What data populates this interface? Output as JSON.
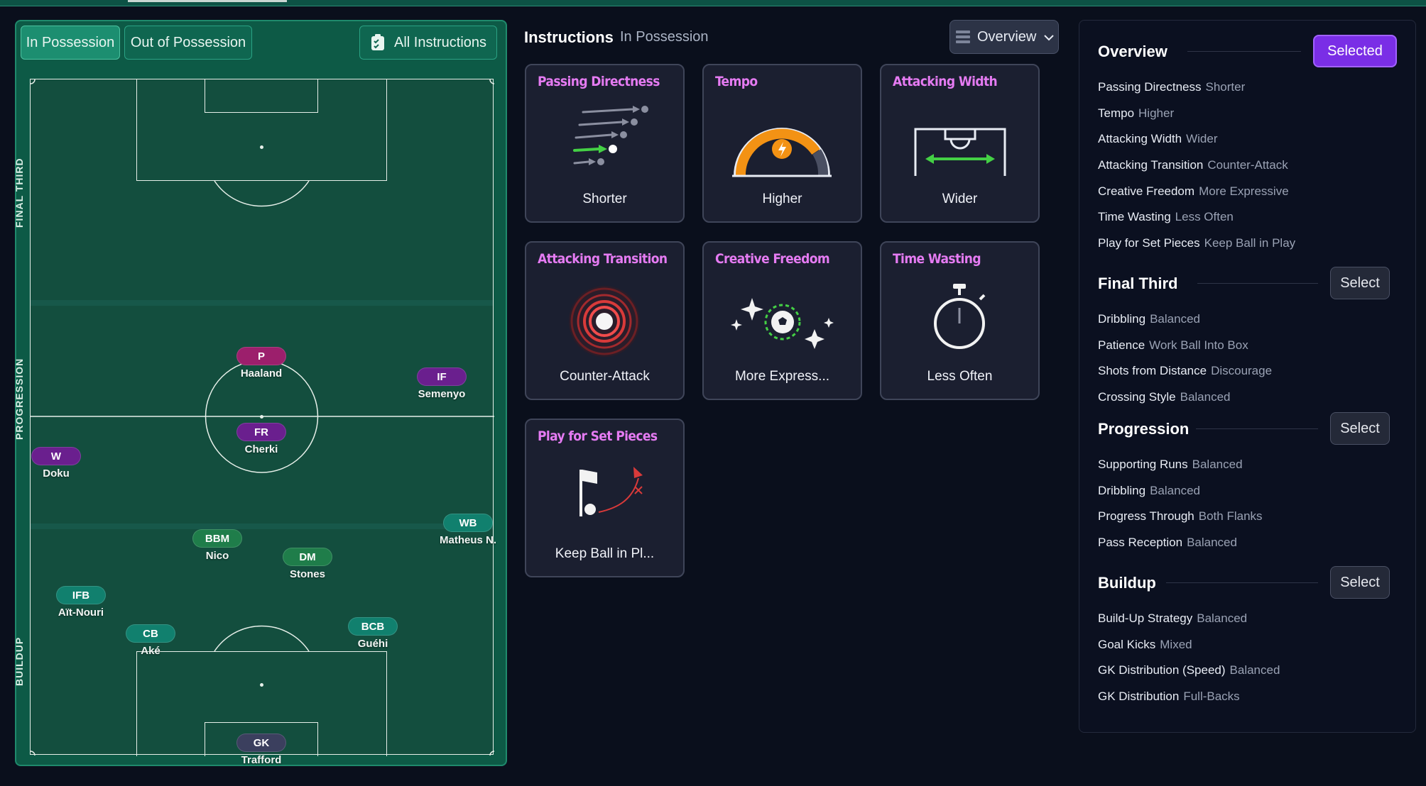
{
  "pitch": {
    "tabs": {
      "in_possession": "In Possession",
      "out_of_possession": "Out of Possession",
      "all_instructions": "All Instructions"
    },
    "zones": {
      "final_third": "FINAL THIRD",
      "progression": "PROGRESSION",
      "buildup": "BUILDUP"
    },
    "players": [
      {
        "role": "P",
        "name": "Haaland",
        "color": "#9c1f6c"
      },
      {
        "role": "IF",
        "name": "Semenyo",
        "color": "#6a1f8e"
      },
      {
        "role": "FR",
        "name": "Cherki",
        "color": "#6a1f8e"
      },
      {
        "role": "W",
        "name": "Doku",
        "color": "#6a1f8e"
      },
      {
        "role": "WB",
        "name": "Matheus N.",
        "color": "#11806e"
      },
      {
        "role": "BBM",
        "name": "Nico",
        "color": "#1f7d4a"
      },
      {
        "role": "DM",
        "name": "Stones",
        "color": "#1f7d4a"
      },
      {
        "role": "IFB",
        "name": "Aït-Nouri",
        "color": "#11806e"
      },
      {
        "role": "CB",
        "name": "Aké",
        "color": "#11806e"
      },
      {
        "role": "BCB",
        "name": "Guéhi",
        "color": "#11806e"
      },
      {
        "role": "GK",
        "name": "Trafford",
        "color": "#3b3f5e"
      }
    ]
  },
  "instructions": {
    "title": "Instructions",
    "subtitle": "In Possession",
    "view_dropdown": "Overview",
    "cards": [
      {
        "title": "Passing Directness",
        "value": "Shorter"
      },
      {
        "title": "Tempo",
        "value": "Higher"
      },
      {
        "title": "Attacking Width",
        "value": "Wider"
      },
      {
        "title": "Attacking Transition",
        "value": "Counter-Attack"
      },
      {
        "title": "Creative Freedom",
        "value": "More Express..."
      },
      {
        "title": "Time Wasting",
        "value": "Less Often"
      },
      {
        "title": "Play for Set Pieces",
        "value": "Keep Ball in Pl..."
      }
    ]
  },
  "summary": {
    "overview": {
      "title": "Overview",
      "button": "Selected",
      "rows": [
        {
          "k": "Passing Directness",
          "v": "Shorter"
        },
        {
          "k": "Tempo",
          "v": "Higher"
        },
        {
          "k": "Attacking Width",
          "v": "Wider"
        },
        {
          "k": "Attacking Transition",
          "v": "Counter-Attack"
        },
        {
          "k": "Creative Freedom",
          "v": "More Expressive"
        },
        {
          "k": "Time Wasting",
          "v": "Less Often"
        },
        {
          "k": "Play for Set Pieces",
          "v": "Keep Ball in Play"
        }
      ]
    },
    "final_third": {
      "title": "Final Third",
      "button": "Select",
      "rows": [
        {
          "k": "Dribbling",
          "v": "Balanced"
        },
        {
          "k": "Patience",
          "v": "Work Ball Into Box"
        },
        {
          "k": "Shots from Distance",
          "v": "Discourage"
        },
        {
          "k": "Crossing Style",
          "v": "Balanced"
        }
      ]
    },
    "progression": {
      "title": "Progression",
      "button": "Select",
      "rows": [
        {
          "k": "Supporting Runs",
          "v": "Balanced"
        },
        {
          "k": "Dribbling",
          "v": "Balanced"
        },
        {
          "k": "Progress Through",
          "v": "Both Flanks"
        },
        {
          "k": "Pass Reception",
          "v": "Balanced"
        }
      ]
    },
    "buildup": {
      "title": "Buildup",
      "button": "Select",
      "rows": [
        {
          "k": "Build-Up Strategy",
          "v": "Balanced"
        },
        {
          "k": "Goal Kicks",
          "v": "Mixed"
        },
        {
          "k": "GK Distribution (Speed)",
          "v": "Balanced"
        },
        {
          "k": "GK Distribution",
          "v": "Full-Backs"
        }
      ]
    }
  }
}
